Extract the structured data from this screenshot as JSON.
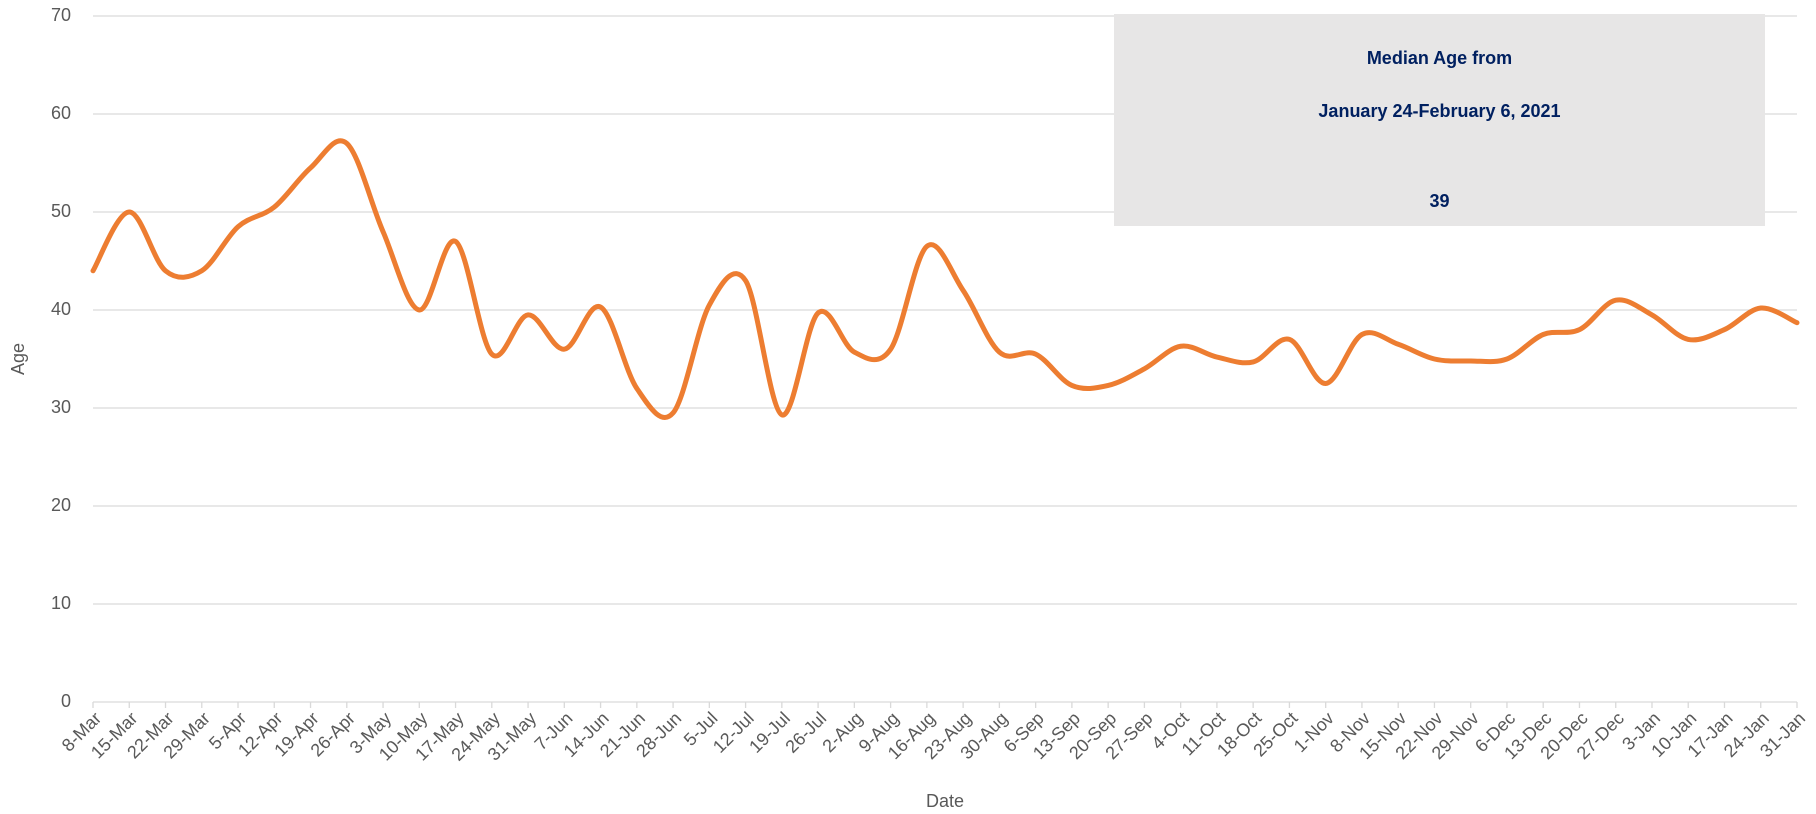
{
  "chart_data": {
    "type": "line",
    "x_label": "Date",
    "y_label": "Age",
    "categories": [
      "8-Mar",
      "15-Mar",
      "22-Mar",
      "29-Mar",
      "5-Apr",
      "12-Apr",
      "19-Apr",
      "26-Apr",
      "3-May",
      "10-May",
      "17-May",
      "24-May",
      "31-May",
      "7-Jun",
      "14-Jun",
      "21-Jun",
      "28-Jun",
      "5-Jul",
      "12-Jul",
      "19-Jul",
      "26-Jul",
      "2-Aug",
      "9-Aug",
      "16-Aug",
      "23-Aug",
      "30-Aug",
      "6-Sep",
      "13-Sep",
      "20-Sep",
      "27-Sep",
      "4-Oct",
      "11-Oct",
      "18-Oct",
      "25-Oct",
      "1-Nov",
      "8-Nov",
      "15-Nov",
      "22-Nov",
      "29-Nov",
      "6-Dec",
      "13-Dec",
      "20-Dec",
      "27-Dec",
      "3-Jan",
      "10-Jan",
      "17-Jan",
      "24-Jan",
      "31-Jan"
    ],
    "values": [
      44,
      50,
      44,
      44,
      48.5,
      50.5,
      54.5,
      57,
      48,
      40,
      47,
      35.5,
      39.5,
      36,
      40.3,
      32,
      29.5,
      40.5,
      43,
      29.3,
      39.7,
      35.7,
      36,
      46.5,
      42,
      35.7,
      35.5,
      32.3,
      32.3,
      34,
      36.3,
      35.2,
      34.7,
      37,
      32.5,
      37.5,
      36.5,
      35,
      34.8,
      35,
      37.5,
      38,
      41,
      39.5,
      37,
      38,
      40.2,
      38.7
    ],
    "color": "#ED7D31",
    "ylim": [
      0,
      70
    ],
    "yticks": [
      0,
      10,
      20,
      30,
      40,
      50,
      60,
      70
    ],
    "grid": true,
    "annotation": {
      "lines": [
        "Median Age from",
        "January 24-February 6, 2021"
      ],
      "value": 39
    }
  }
}
